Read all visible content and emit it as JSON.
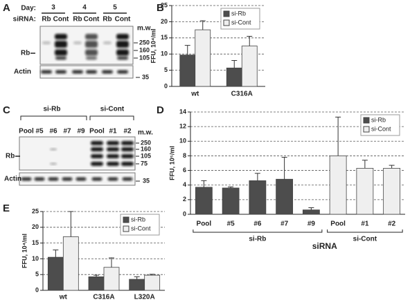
{
  "panel_labels": [
    "A",
    "B",
    "C",
    "D",
    "E"
  ],
  "blots": {
    "A": {
      "day_label": "Day:",
      "days": [
        "3",
        "4",
        "5"
      ],
      "sirna_label": "siRNA:",
      "lanes": [
        "Rb",
        "Cont",
        "Rb",
        "Cont",
        "Rb",
        "Cont"
      ],
      "mw_label": "m.w.",
      "mw": [
        "250",
        "160",
        "105"
      ],
      "target": "Rb",
      "loading": "Actin",
      "loading_mw": "35"
    },
    "C": {
      "groups": [
        "si-Rb",
        "si-Cont"
      ],
      "lanes": [
        "Pool",
        "#5",
        "#6",
        "#7",
        "#9",
        "Pool",
        "#1",
        "#2"
      ],
      "mw_label": "m.w.",
      "mw": [
        "250",
        "160",
        "105",
        "75"
      ],
      "target": "Rb",
      "loading": "Actin",
      "loading_mw": "35"
    }
  },
  "chart_data": [
    {
      "type": "bar",
      "ylabel": "FFU, 10⁴/ml",
      "categories": [
        "wt",
        "C316A"
      ],
      "series": [
        {
          "name": "si-Rb",
          "color": "#4d4d4d",
          "values": [
            9.7,
            5.7
          ],
          "errors": [
            3.0,
            2.3
          ]
        },
        {
          "name": "si-Cont",
          "color": "#efefef",
          "values": [
            17.5,
            12.5
          ],
          "errors": [
            2.8,
            3.0
          ]
        }
      ],
      "ylim": [
        0,
        25
      ],
      "yticks": [
        0,
        5,
        10,
        15,
        20,
        25
      ],
      "grid": true,
      "legend": "upper-right"
    },
    {
      "type": "bar",
      "ylabel": "FFU, 10⁵/ml",
      "xlabel": "siRNA",
      "categories": [
        "Pool",
        "#5",
        "#6",
        "#7",
        "#9",
        "Pool",
        "#1",
        "#2"
      ],
      "group_labels": [
        "si-Rb",
        "si-Cont"
      ],
      "series": [
        {
          "name": "si-Rb",
          "color": "#4d4d4d",
          "values": [
            3.7,
            3.6,
            4.6,
            4.8,
            0.6,
            null,
            null,
            null
          ],
          "errors": [
            0.9,
            0.15,
            1.0,
            3.0,
            0.3,
            null,
            null,
            null
          ]
        },
        {
          "name": "si-Cont",
          "color": "#efefef",
          "values": [
            null,
            null,
            null,
            null,
            null,
            8.0,
            6.3,
            6.3
          ],
          "errors": [
            null,
            null,
            null,
            null,
            null,
            5.3,
            1.1,
            0.4
          ]
        }
      ],
      "ylim": [
        0,
        14
      ],
      "yticks": [
        0,
        2,
        4,
        6,
        8,
        10,
        12,
        14
      ],
      "grid": true,
      "legend": "upper-right"
    },
    {
      "type": "bar",
      "ylabel": "FFU, 10⁴/ml",
      "categories": [
        "wt",
        "C316A",
        "L320A"
      ],
      "series": [
        {
          "name": "si-Rb",
          "color": "#4d4d4d",
          "values": [
            10.5,
            4.3,
            3.5
          ],
          "errors": [
            2.3,
            0.5,
            0.8
          ]
        },
        {
          "name": "si-Cont",
          "color": "#efefef",
          "values": [
            17,
            7.3,
            4.8
          ],
          "errors": [
            8,
            3,
            0.3
          ]
        }
      ],
      "ylim": [
        0,
        25
      ],
      "yticks": [
        0,
        5,
        10,
        15,
        20,
        25
      ],
      "grid": true,
      "legend": "upper-right"
    }
  ]
}
